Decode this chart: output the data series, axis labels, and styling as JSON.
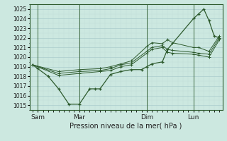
{
  "xlabel": "Pression niveau de la mer( hPa )",
  "bg_color": "#cce8e0",
  "grid_major_color": "#aacccc",
  "grid_minor_color": "#c0ddd8",
  "line_color": "#2d5a2d",
  "ylim": [
    1014.5,
    1025.5
  ],
  "xlim": [
    -0.3,
    18.3
  ],
  "yticks": [
    1015,
    1016,
    1017,
    1018,
    1019,
    1020,
    1021,
    1022,
    1023,
    1024,
    1025
  ],
  "day_labels": [
    "Sam",
    "Mar",
    "Dim",
    "Lun"
  ],
  "day_positions": [
    0.5,
    4.5,
    11.0,
    15.5
  ],
  "vline_positions": [
    0.5,
    4.5,
    11.0,
    15.5
  ],
  "series1_x": [
    0,
    0.5,
    1.5,
    2.5,
    3.5,
    4.5,
    5.5,
    6.0,
    6.5,
    7.5,
    8.5,
    9.5,
    10.5,
    11.0,
    11.5,
    12.5,
    13.0,
    15.5,
    16.0,
    16.5,
    17.0,
    17.5,
    18.0
  ],
  "series1_y": [
    1019.2,
    1018.8,
    1018.0,
    1016.7,
    1015.1,
    1015.1,
    1016.7,
    1016.7,
    1016.7,
    1018.2,
    1018.5,
    1018.7,
    1018.7,
    1019.0,
    1019.3,
    1019.5,
    1020.8,
    1024.0,
    1024.5,
    1025.0,
    1023.8,
    1022.2,
    1022.0
  ],
  "series2_x": [
    0,
    2.5,
    4.5,
    6.5,
    7.5,
    8.5,
    9.5,
    11.0,
    11.5,
    12.5,
    13.0,
    13.5,
    15.5,
    16.0,
    17.0,
    18.0
  ],
  "series2_y": [
    1019.2,
    1018.5,
    1018.7,
    1018.8,
    1019.0,
    1019.3,
    1019.6,
    1021.1,
    1021.5,
    1021.4,
    1021.8,
    1021.5,
    1021.0,
    1021.0,
    1020.6,
    1022.2
  ],
  "series3_x": [
    0,
    2.5,
    4.5,
    6.5,
    7.5,
    8.5,
    9.5,
    11.0,
    11.5,
    12.5,
    13.0,
    13.5,
    15.5,
    16.0,
    17.0,
    18.0
  ],
  "series3_y": [
    1019.2,
    1018.3,
    1018.5,
    1018.6,
    1018.8,
    1019.2,
    1019.4,
    1020.6,
    1021.0,
    1021.2,
    1020.8,
    1020.7,
    1020.5,
    1020.4,
    1020.3,
    1022.0
  ],
  "series4_x": [
    0,
    2.5,
    4.5,
    6.5,
    7.5,
    8.5,
    9.5,
    11.0,
    11.5,
    12.5,
    13.0,
    13.5,
    15.5,
    16.0,
    17.0,
    18.0
  ],
  "series4_y": [
    1019.2,
    1018.1,
    1018.3,
    1018.5,
    1018.6,
    1019.0,
    1019.2,
    1020.4,
    1020.8,
    1021.0,
    1020.5,
    1020.4,
    1020.3,
    1020.2,
    1020.0,
    1021.8
  ],
  "xlabel_fontsize": 7,
  "ytick_fontsize": 5.5,
  "xtick_fontsize": 6.5
}
